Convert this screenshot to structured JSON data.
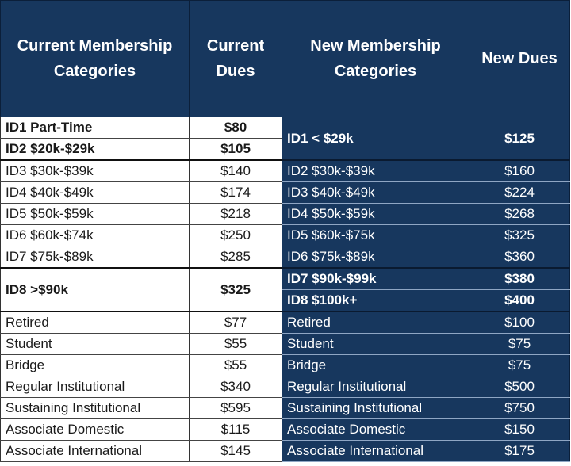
{
  "headers": {
    "current_categories": "Current Membership Categories",
    "current_dues": "Current Dues",
    "new_categories": "New Membership Categories",
    "new_dues": "New Dues"
  },
  "current": [
    {
      "cat": "ID1 Part-Time",
      "dues": "$80"
    },
    {
      "cat": "ID2 $20k-$29k",
      "dues": "$105"
    },
    {
      "cat": "ID3 $30k-$39k",
      "dues": "$140"
    },
    {
      "cat": "ID4 $40k-$49k",
      "dues": "$174"
    },
    {
      "cat": "ID5 $50k-$59k",
      "dues": "$218"
    },
    {
      "cat": "ID6 $60k-$74k",
      "dues": "$250"
    },
    {
      "cat": "ID7 $75k-$89k",
      "dues": "$285"
    },
    {
      "cat": "ID8 >$90k",
      "dues": "$325"
    },
    {
      "cat": "Retired",
      "dues": "$77"
    },
    {
      "cat": "Student",
      "dues": "$55"
    },
    {
      "cat": "Bridge",
      "dues": "$55"
    },
    {
      "cat": "Regular Institutional",
      "dues": "$340"
    },
    {
      "cat": "Sustaining Institutional",
      "dues": "$595"
    },
    {
      "cat": "Associate Domestic",
      "dues": "$115"
    },
    {
      "cat": "Associate International",
      "dues": "$145"
    }
  ],
  "new": [
    {
      "cat": "ID1 < $29k",
      "dues": "$125"
    },
    {
      "cat": "ID2 $30k-$39k",
      "dues": "$160"
    },
    {
      "cat": "ID3 $40k-$49k",
      "dues": "$224"
    },
    {
      "cat": "ID4 $50k-$59k",
      "dues": "$268"
    },
    {
      "cat": "ID5 $60k-$75k",
      "dues": "$325"
    },
    {
      "cat": "ID6 $75k-$89k",
      "dues": "$360"
    },
    {
      "cat": "ID7 $90k-$99k",
      "dues": "$380"
    },
    {
      "cat": "ID8 $100k+",
      "dues": "$400"
    },
    {
      "cat": "Retired",
      "dues": "$100"
    },
    {
      "cat": "Student",
      "dues": "$75"
    },
    {
      "cat": "Bridge",
      "dues": "$75"
    },
    {
      "cat": "Regular Institutional",
      "dues": "$500"
    },
    {
      "cat": "Sustaining Institutional",
      "dues": "$750"
    },
    {
      "cat": "Associate Domestic",
      "dues": "$150"
    },
    {
      "cat": "Associate International",
      "dues": "$175"
    }
  ],
  "colors": {
    "header_bg": "#17375e",
    "new_bg": "#17375e",
    "current_bg": "#ffffff"
  }
}
